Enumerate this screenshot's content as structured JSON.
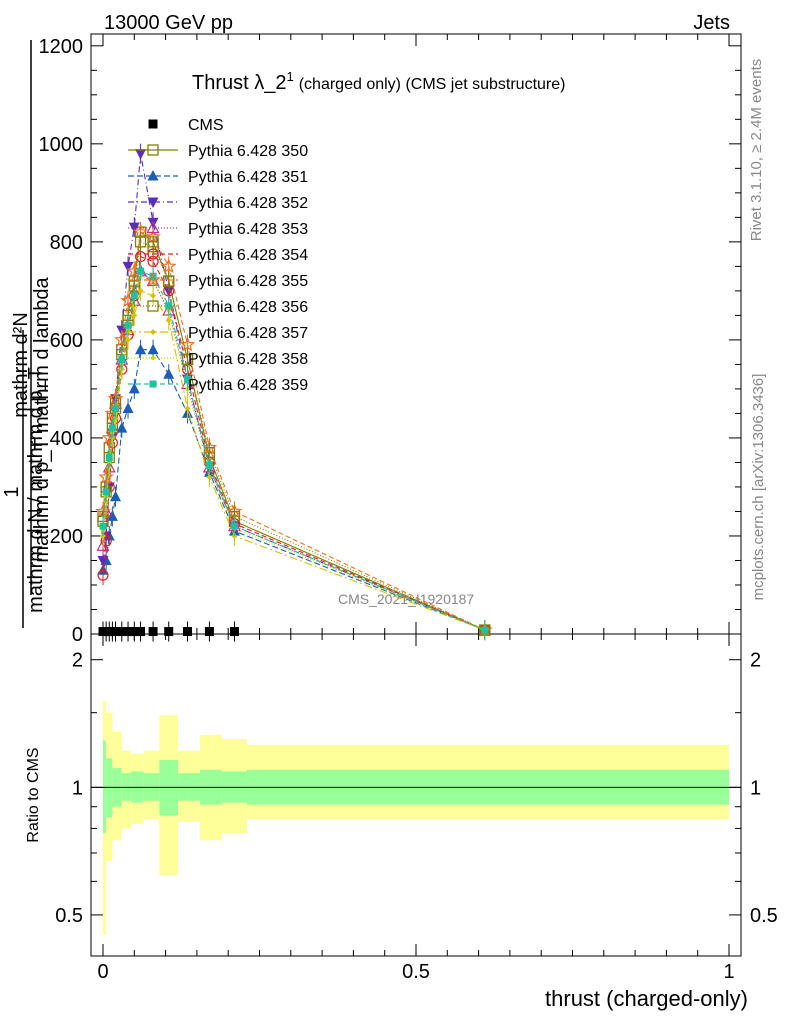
{
  "header": {
    "left": "13000 GeV pp",
    "right": "Jets"
  },
  "side_text": {
    "rivet": "Rivet 3.1.10, ≥ 2.4M events",
    "mcplots": "mcplots.cern.ch [arXiv:1306.3436]"
  },
  "title": {
    "main": "Thrust λ_2",
    "superscript": "1",
    "suffix": "(charged only) (CMS jet substructure)"
  },
  "watermark": "CMS_2021_I1920187",
  "ylabel_main": {
    "numerator": "mathrm d²N",
    "denominator": "mathrm d p_T mathrm d lambda",
    "prefix_num": "1",
    "prefix_den": "mathrm d N / mathrm d p_T"
  },
  "ylabel_ratio": "Ratio to CMS",
  "xlabel": "thrust (charged-only)",
  "chart_data": [
    {
      "type": "line",
      "panel": "main",
      "ylim": [
        0,
        1220
      ],
      "xlim": [
        -0.02,
        1.0
      ],
      "yticks": [
        0,
        200,
        400,
        600,
        800,
        1000,
        1200
      ],
      "ytick_labels": [
        "0",
        "200",
        "400",
        "600",
        "800",
        "1000",
        "1200"
      ],
      "x": [
        0.0,
        0.005,
        0.01,
        0.015,
        0.02,
        0.03,
        0.04,
        0.05,
        0.06,
        0.08,
        0.105,
        0.135,
        0.17,
        0.21,
        0.61
      ],
      "series": [
        {
          "name": "CMS",
          "color": "#000000",
          "marker": "square-filled",
          "dash": "none",
          "values": [
            5,
            5,
            5,
            5,
            5,
            5,
            5,
            5,
            5,
            5,
            5,
            5,
            5,
            5,
            null
          ]
        },
        {
          "name": "Pythia 6.428 350",
          "color": "#808000",
          "marker": "square-open",
          "dash": "solid",
          "values": [
            240,
            300,
            380,
            440,
            470,
            580,
            650,
            720,
            820,
            800,
            720,
            560,
            360,
            230,
            8
          ]
        },
        {
          "name": "Pythia 6.428 351",
          "color": "#1a5eb8",
          "marker": "triangle-up-filled",
          "dash": "6,3",
          "values": [
            130,
            150,
            200,
            240,
            280,
            420,
            460,
            500,
            580,
            580,
            530,
            450,
            330,
            210,
            8
          ]
        },
        {
          "name": "Pythia 6.428 352",
          "color": "#5a2dbb",
          "marker": "triangle-down-filled",
          "dash": "6,3,1,3",
          "values": [
            150,
            200,
            300,
            400,
            480,
            620,
            750,
            830,
            980,
            840,
            700,
            520,
            340,
            220,
            8
          ]
        },
        {
          "name": "Pythia 6.428 353",
          "color": "#c0308c",
          "marker": "triangle-up-open",
          "dash": "1,2",
          "values": [
            180,
            250,
            340,
            420,
            470,
            560,
            620,
            680,
            740,
            720,
            660,
            510,
            340,
            220,
            8
          ]
        },
        {
          "name": "Pythia 6.428 354",
          "color": "#e02020",
          "marker": "circle-open",
          "dash": "5,3",
          "values": [
            120,
            190,
            300,
            390,
            440,
            540,
            610,
            690,
            770,
            760,
            700,
            540,
            350,
            225,
            8
          ]
        },
        {
          "name": "Pythia 6.428 355",
          "color": "#f07020",
          "marker": "star-open",
          "dash": "5,3",
          "values": [
            250,
            320,
            400,
            450,
            480,
            600,
            680,
            740,
            820,
            810,
            750,
            590,
            380,
            250,
            8
          ]
        },
        {
          "name": "Pythia 6.428 356",
          "color": "#808000",
          "marker": "square-open",
          "dash": "1,2",
          "values": [
            230,
            290,
            360,
            420,
            460,
            570,
            640,
            710,
            800,
            790,
            720,
            560,
            370,
            240,
            8
          ]
        },
        {
          "name": "Pythia 6.428 357",
          "color": "#d8c000",
          "marker": "diamond-small",
          "dash": "8,3,2,3",
          "values": [
            200,
            270,
            340,
            400,
            440,
            540,
            600,
            650,
            700,
            690,
            640,
            460,
            320,
            200,
            8
          ]
        },
        {
          "name": "Pythia 6.428 358",
          "color": "#c8d800",
          "marker": "dot-small",
          "dash": "1,2",
          "values": [
            210,
            280,
            350,
            410,
            450,
            550,
            620,
            670,
            730,
            720,
            660,
            500,
            340,
            215,
            8
          ]
        },
        {
          "name": "Pythia 6.428 359",
          "color": "#20c0a0",
          "marker": "square-filled-small",
          "dash": "5,3",
          "values": [
            220,
            290,
            360,
            420,
            460,
            560,
            630,
            690,
            740,
            730,
            670,
            520,
            345,
            220,
            8
          ]
        }
      ]
    },
    {
      "type": "area",
      "panel": "ratio",
      "ylim": [
        0.4,
        2.3
      ],
      "yscale": "log",
      "xlim": [
        -0.02,
        1.0
      ],
      "yticks": [
        0.5,
        1,
        2
      ],
      "ytick_labels": [
        "0.5",
        "1",
        "2"
      ],
      "xticks": [
        0,
        0.5,
        1
      ],
      "xtick_labels": [
        "0",
        "0.5",
        "1"
      ],
      "bin_edges": [
        0.0,
        0.005,
        0.015,
        0.03,
        0.045,
        0.065,
        0.09,
        0.12,
        0.155,
        0.19,
        0.23,
        1.0
      ],
      "stat_band": {
        "color": "#99ff99",
        "lower": [
          0.78,
          0.85,
          0.9,
          0.93,
          0.92,
          0.93,
          0.86,
          0.93,
          0.91,
          0.92,
          0.91
        ],
        "upper": [
          1.29,
          1.17,
          1.11,
          1.08,
          1.09,
          1.08,
          1.16,
          1.08,
          1.1,
          1.09,
          1.1
        ]
      },
      "total_band": {
        "color": "#ffff99",
        "lower": [
          0.45,
          0.67,
          0.75,
          0.8,
          0.82,
          0.84,
          0.62,
          0.83,
          0.75,
          0.78,
          0.84
        ],
        "upper": [
          1.6,
          1.5,
          1.35,
          1.22,
          1.2,
          1.22,
          1.48,
          1.22,
          1.33,
          1.3,
          1.26
        ]
      },
      "reference_line": 1
    }
  ]
}
